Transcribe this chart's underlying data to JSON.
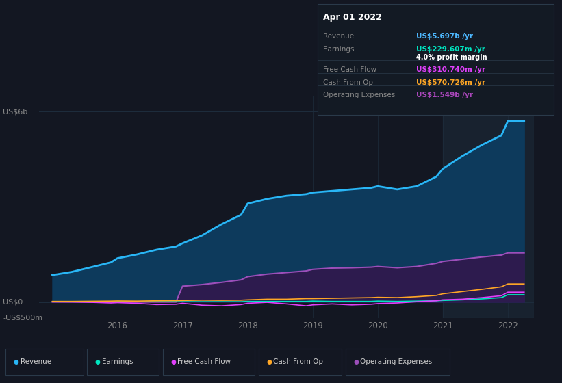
{
  "bg_color": "#131722",
  "plot_bg_color": "#131722",
  "grid_color": "#1e2d3d",
  "title_box": {
    "date": "Apr 01 2022",
    "rows": [
      {
        "label": "Revenue",
        "value": "US$5.697b /yr",
        "value_color": "#4db8ff",
        "label_color": "#888888"
      },
      {
        "label": "Earnings",
        "value": "US$229.607m /yr",
        "value_color": "#00e5c0",
        "label_color": "#888888",
        "sub": "4.0% profit margin"
      },
      {
        "label": "Free Cash Flow",
        "value": "US$310.740m /yr",
        "value_color": "#e040fb",
        "label_color": "#888888"
      },
      {
        "label": "Cash From Op",
        "value": "US$570.726m /yr",
        "value_color": "#ffa726",
        "label_color": "#888888"
      },
      {
        "label": "Operating Expenses",
        "value": "US$1.549b /yr",
        "value_color": "#ab47bc",
        "label_color": "#888888"
      }
    ]
  },
  "years": [
    2015.0,
    2015.3,
    2015.6,
    2015.9,
    2016.0,
    2016.3,
    2016.6,
    2016.9,
    2017.0,
    2017.3,
    2017.6,
    2017.9,
    2018.0,
    2018.3,
    2018.6,
    2018.9,
    2019.0,
    2019.3,
    2019.6,
    2019.9,
    2020.0,
    2020.3,
    2020.6,
    2020.9,
    2021.0,
    2021.3,
    2021.6,
    2021.9,
    2022.0,
    2022.25
  ],
  "revenue": [
    0.85,
    0.95,
    1.1,
    1.25,
    1.38,
    1.5,
    1.65,
    1.75,
    1.85,
    2.1,
    2.45,
    2.75,
    3.1,
    3.25,
    3.35,
    3.4,
    3.45,
    3.5,
    3.55,
    3.6,
    3.65,
    3.55,
    3.65,
    3.95,
    4.2,
    4.6,
    4.95,
    5.25,
    5.7,
    5.7
  ],
  "earnings": [
    0.01,
    0.01,
    0.01,
    0.01,
    0.01,
    0.01,
    0.01,
    0.01,
    0.01,
    0.01,
    0.01,
    0.01,
    0.02,
    0.02,
    0.02,
    0.02,
    0.03,
    0.02,
    0.02,
    0.02,
    0.03,
    0.02,
    0.03,
    0.04,
    0.05,
    0.07,
    0.1,
    0.14,
    0.23,
    0.23
  ],
  "free_cash_flow": [
    0.01,
    0.005,
    -0.01,
    -0.03,
    -0.02,
    -0.04,
    -0.08,
    -0.07,
    -0.04,
    -0.1,
    -0.12,
    -0.08,
    -0.04,
    -0.01,
    -0.06,
    -0.12,
    -0.09,
    -0.06,
    -0.09,
    -0.07,
    -0.05,
    -0.03,
    0.01,
    0.04,
    0.07,
    0.09,
    0.14,
    0.2,
    0.31,
    0.31
  ],
  "cash_from_op": [
    0.02,
    0.02,
    0.025,
    0.03,
    0.035,
    0.03,
    0.04,
    0.045,
    0.05,
    0.06,
    0.055,
    0.06,
    0.07,
    0.09,
    0.09,
    0.11,
    0.11,
    0.12,
    0.13,
    0.14,
    0.15,
    0.14,
    0.17,
    0.21,
    0.26,
    0.33,
    0.4,
    0.48,
    0.57,
    0.57
  ],
  "operating_expenses": [
    0.0,
    0.0,
    0.0,
    0.0,
    0.0,
    0.0,
    0.0,
    0.0,
    0.5,
    0.55,
    0.62,
    0.7,
    0.8,
    0.88,
    0.93,
    0.98,
    1.03,
    1.07,
    1.08,
    1.1,
    1.12,
    1.08,
    1.12,
    1.22,
    1.28,
    1.35,
    1.42,
    1.48,
    1.55,
    1.55
  ],
  "revenue_color": "#29b6f6",
  "revenue_fill": "#0d3a5c",
  "earnings_color": "#00e5c0",
  "free_cash_flow_color": "#e040fb",
  "cash_from_op_color": "#ffa726",
  "operating_expenses_color": "#9c4fba",
  "operating_expenses_fill": "#2d1b4e",
  "ylim": [
    -0.5,
    6.5
  ],
  "ytick_vals": [
    -0.5,
    0.0,
    6.0
  ],
  "ytick_labels": [
    "-US$500m",
    "US$0",
    "US$6b"
  ],
  "xlabel_years": [
    2016,
    2017,
    2018,
    2019,
    2020,
    2021,
    2022
  ],
  "xmin": 2014.8,
  "xmax": 2022.4,
  "shade_start": 2021.0,
  "shade_end": 2022.4,
  "legend_items": [
    {
      "label": "Revenue",
      "color": "#29b6f6"
    },
    {
      "label": "Earnings",
      "color": "#00e5c0"
    },
    {
      "label": "Free Cash Flow",
      "color": "#e040fb"
    },
    {
      "label": "Cash From Op",
      "color": "#ffa726"
    },
    {
      "label": "Operating Expenses",
      "color": "#9c4fba"
    }
  ]
}
